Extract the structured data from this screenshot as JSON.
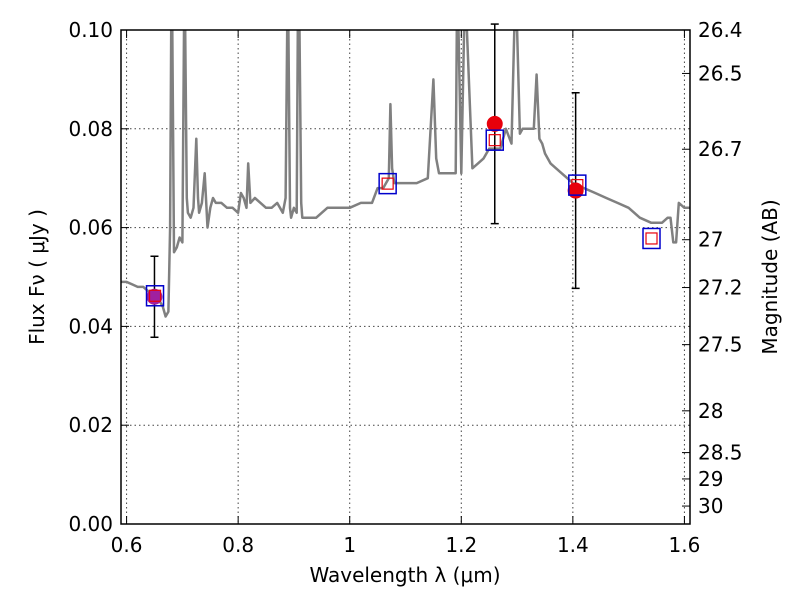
{
  "chart_data": {
    "type": "line",
    "xlabel": "Wavelength  λ (μm)",
    "ylabel": "Flux  Fν  ( μJy )",
    "y2label": "Magnitude (AB)",
    "xlim": [
      0.59,
      1.61
    ],
    "ylim": [
      0.0,
      0.1
    ],
    "grid": true,
    "x_ticks": [
      0.6,
      0.8,
      1.0,
      1.2,
      1.4,
      1.6
    ],
    "x_tick_labels": [
      "0.6",
      "0.8",
      "1",
      "1.2",
      "1.4",
      "1.6"
    ],
    "y_ticks": [
      0.0,
      0.02,
      0.04,
      0.06,
      0.08,
      0.1
    ],
    "y_tick_labels": [
      "0.00",
      "0.02",
      "0.04",
      "0.06",
      "0.08",
      "0.10"
    ],
    "mag_ticks": [
      26.4,
      26.5,
      26.7,
      27,
      27.2,
      27.5,
      28,
      28.5,
      29,
      30
    ],
    "mag_tick_labels": [
      "26.4",
      "26.5",
      "26.7",
      "27",
      "27.2",
      "27.5",
      "28",
      "28.5",
      "29",
      "30"
    ],
    "colors": {
      "spectrum": "#808080",
      "observed": "#e8000b",
      "model_box": "#0000cc",
      "model_inner": "#e8000b",
      "overlap": "#a020a0",
      "errorbar": "#000000"
    },
    "series": [
      {
        "name": "model spectrum",
        "x": [
          0.59,
          0.6,
          0.61,
          0.62,
          0.63,
          0.64,
          0.65,
          0.655,
          0.66,
          0.665,
          0.67,
          0.675,
          0.678,
          0.68,
          0.682,
          0.685,
          0.69,
          0.695,
          0.7,
          0.703,
          0.705,
          0.708,
          0.71,
          0.715,
          0.72,
          0.725,
          0.728,
          0.73,
          0.735,
          0.74,
          0.745,
          0.75,
          0.755,
          0.76,
          0.77,
          0.78,
          0.79,
          0.8,
          0.805,
          0.81,
          0.815,
          0.818,
          0.822,
          0.83,
          0.84,
          0.85,
          0.86,
          0.87,
          0.88,
          0.885,
          0.888,
          0.89,
          0.893,
          0.895,
          0.9,
          0.905,
          0.907,
          0.91,
          0.913,
          0.915,
          0.92,
          0.94,
          0.96,
          0.98,
          1.0,
          1.02,
          1.04,
          1.05,
          1.06,
          1.065,
          1.07,
          1.073,
          1.076,
          1.08,
          1.1,
          1.12,
          1.14,
          1.15,
          1.155,
          1.16,
          1.17,
          1.18,
          1.19,
          1.192,
          1.195,
          1.2,
          1.205,
          1.21,
          1.22,
          1.23,
          1.24,
          1.25,
          1.26,
          1.27,
          1.28,
          1.29,
          1.295,
          1.3,
          1.305,
          1.31,
          1.32,
          1.33,
          1.335,
          1.34,
          1.345,
          1.35,
          1.36,
          1.38,
          1.4,
          1.42,
          1.44,
          1.46,
          1.48,
          1.5,
          1.52,
          1.54,
          1.55,
          1.56,
          1.57,
          1.575,
          1.58,
          1.585,
          1.59,
          1.6,
          1.61
        ],
        "y": [
          0.049,
          0.049,
          0.0485,
          0.048,
          0.048,
          0.047,
          0.0465,
          0.0455,
          0.045,
          0.044,
          0.042,
          0.043,
          0.06,
          0.1,
          0.1,
          0.055,
          0.056,
          0.058,
          0.057,
          0.1,
          0.1,
          0.066,
          0.063,
          0.062,
          0.064,
          0.078,
          0.066,
          0.063,
          0.065,
          0.071,
          0.06,
          0.064,
          0.066,
          0.065,
          0.065,
          0.064,
          0.064,
          0.063,
          0.067,
          0.066,
          0.064,
          0.073,
          0.065,
          0.066,
          0.065,
          0.064,
          0.064,
          0.065,
          0.063,
          0.066,
          0.1,
          0.1,
          0.064,
          0.062,
          0.064,
          0.063,
          0.1,
          0.1,
          0.065,
          0.062,
          0.062,
          0.062,
          0.064,
          0.064,
          0.064,
          0.065,
          0.065,
          0.068,
          0.068,
          0.069,
          0.07,
          0.085,
          0.072,
          0.069,
          0.069,
          0.069,
          0.07,
          0.09,
          0.074,
          0.071,
          0.071,
          0.071,
          0.071,
          0.1,
          0.1,
          0.071,
          0.1,
          0.1,
          0.072,
          0.073,
          0.074,
          0.076,
          0.076,
          0.076,
          0.08,
          0.077,
          0.1,
          0.1,
          0.079,
          0.08,
          0.08,
          0.08,
          0.091,
          0.078,
          0.077,
          0.075,
          0.073,
          0.071,
          0.069,
          0.068,
          0.067,
          0.066,
          0.065,
          0.064,
          0.062,
          0.061,
          0.061,
          0.061,
          0.062,
          0.062,
          0.057,
          0.057,
          0.065,
          0.064,
          0.064
        ]
      },
      {
        "name": "observed photometry",
        "x": [
          0.65,
          1.26,
          1.405
        ],
        "y": [
          0.046,
          0.081,
          0.0675
        ],
        "yerr": [
          0.0082,
          0.0202,
          0.0198
        ]
      },
      {
        "name": "model photometry",
        "x": [
          0.651,
          1.068,
          1.26,
          1.408,
          1.541
        ],
        "y": [
          0.0462,
          0.0689,
          0.0777,
          0.0686,
          0.0578
        ]
      }
    ]
  }
}
